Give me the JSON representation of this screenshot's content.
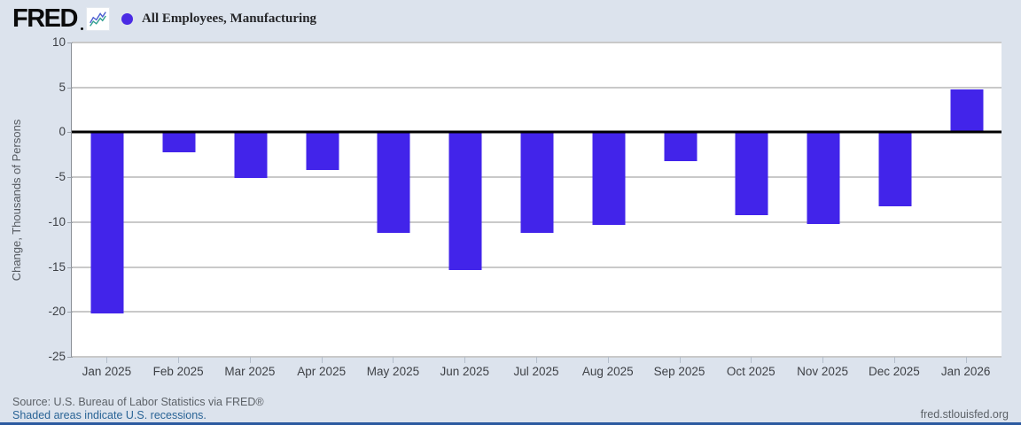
{
  "header": {
    "brand": "FRED",
    "legend": {
      "label": "All Employees, Manufacturing"
    }
  },
  "chart_data": {
    "type": "bar",
    "title": "All Employees, Manufacturing",
    "categories": [
      "Jan 2025",
      "Feb 2025",
      "Mar 2025",
      "Apr 2025",
      "May 2025",
      "Jun 2025",
      "Jul 2025",
      "Aug 2025",
      "Sep 2025",
      "Oct 2025",
      "Nov 2025",
      "Dec 2025",
      "Jan 2026"
    ],
    "values": [
      -20.2,
      -2.2,
      -5.1,
      -4.2,
      -11.2,
      -15.3,
      -11.2,
      -10.3,
      -3.2,
      -9.2,
      -10.2,
      -8.2,
      4.8
    ],
    "xlabel": "",
    "ylabel": "Change, Thousands of Persons",
    "ylim": [
      -25,
      10
    ],
    "yticks": [
      10,
      5,
      0,
      -5,
      -10,
      -15,
      -20,
      -25
    ],
    "grid": true,
    "zero_line_at": 0,
    "legend_position": "top-left",
    "bar_color": "#4224ea",
    "marker_color": "#4a2be4"
  },
  "footer": {
    "source": "Source: U.S. Bureau of Labor Statistics via FRED®",
    "recession_note": "Shaded areas indicate U.S. recessions.",
    "site": "fred.stlouisfed.org"
  },
  "colors": {
    "page_background": "#dce3ed",
    "plot_background": "#ffffff",
    "gridline": "#c9c9c9",
    "zero_line": "#000000",
    "link_blue": "#2a6496",
    "bottom_border": "#2c5aa0",
    "spark_line_blue": "#4a5cd0",
    "spark_line_teal": "#2f9e8f"
  }
}
